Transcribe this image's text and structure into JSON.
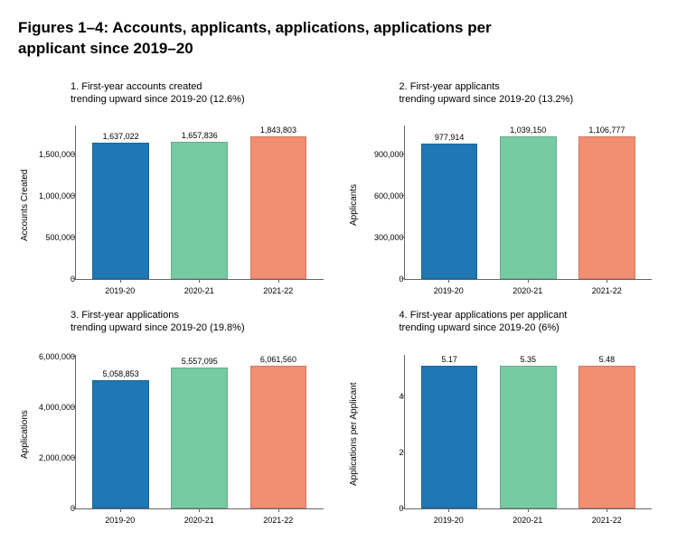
{
  "main_title": "Figures 1–4: Accounts, applicants, applications, applications per applicant since 2019–20",
  "categories": [
    "2019-20",
    "2020-21",
    "2021-22"
  ],
  "bar_colors": [
    "#1f77b4",
    "#77cba3",
    "#f28e72"
  ],
  "axis_color": "#666666",
  "panels": [
    {
      "title_line1": "1. First-year accounts created",
      "title_line2": "trending upward since 2019-20 (12.6%)",
      "ylabel": "Accounts Created",
      "ymax": 1843803,
      "yticks": [
        "0",
        "500,000",
        "1,000,000",
        "1,500,000"
      ],
      "ytick_vals": [
        0,
        500000,
        1000000,
        1500000
      ],
      "values": [
        1637022,
        1657836,
        1843803
      ],
      "labels": [
        "1,637,022",
        "1,657,836",
        "1,843,803"
      ]
    },
    {
      "title_line1": "2. First-year applicants",
      "title_line2": "trending upward since 2019-20 (13.2%)",
      "ylabel": "Applicants",
      "ymax": 1106777,
      "yticks": [
        "0",
        "300,000",
        "600,000",
        "900,000"
      ],
      "ytick_vals": [
        0,
        300000,
        600000,
        900000
      ],
      "values": [
        977914,
        1039150,
        1106777
      ],
      "labels": [
        "977,914",
        "1,039,150",
        "1,106,777"
      ]
    },
    {
      "title_line1": "3. First-year applications",
      "title_line2": "trending upward since 2019-20 (19.8%)",
      "ylabel": "Applications",
      "ymax": 6061560,
      "yticks": [
        "0",
        "2,000,000",
        "4,000,000",
        "6,000,000"
      ],
      "ytick_vals": [
        0,
        2000000,
        4000000,
        6000000
      ],
      "values": [
        5058853,
        5557095,
        6061560
      ],
      "labels": [
        "5,058,853",
        "5,557,095",
        "6,061,560"
      ]
    },
    {
      "title_line1": "4. First-year applications per applicant",
      "title_line2": "trending upward since 2019-20 (6%)",
      "ylabel": "Applications per Applicant",
      "ymax": 5.48,
      "yticks": [
        "0",
        "2",
        "4"
      ],
      "ytick_vals": [
        0,
        2,
        4
      ],
      "values": [
        5.17,
        5.35,
        5.48
      ],
      "labels": [
        "5.17",
        "5.35",
        "5.48"
      ]
    }
  ]
}
